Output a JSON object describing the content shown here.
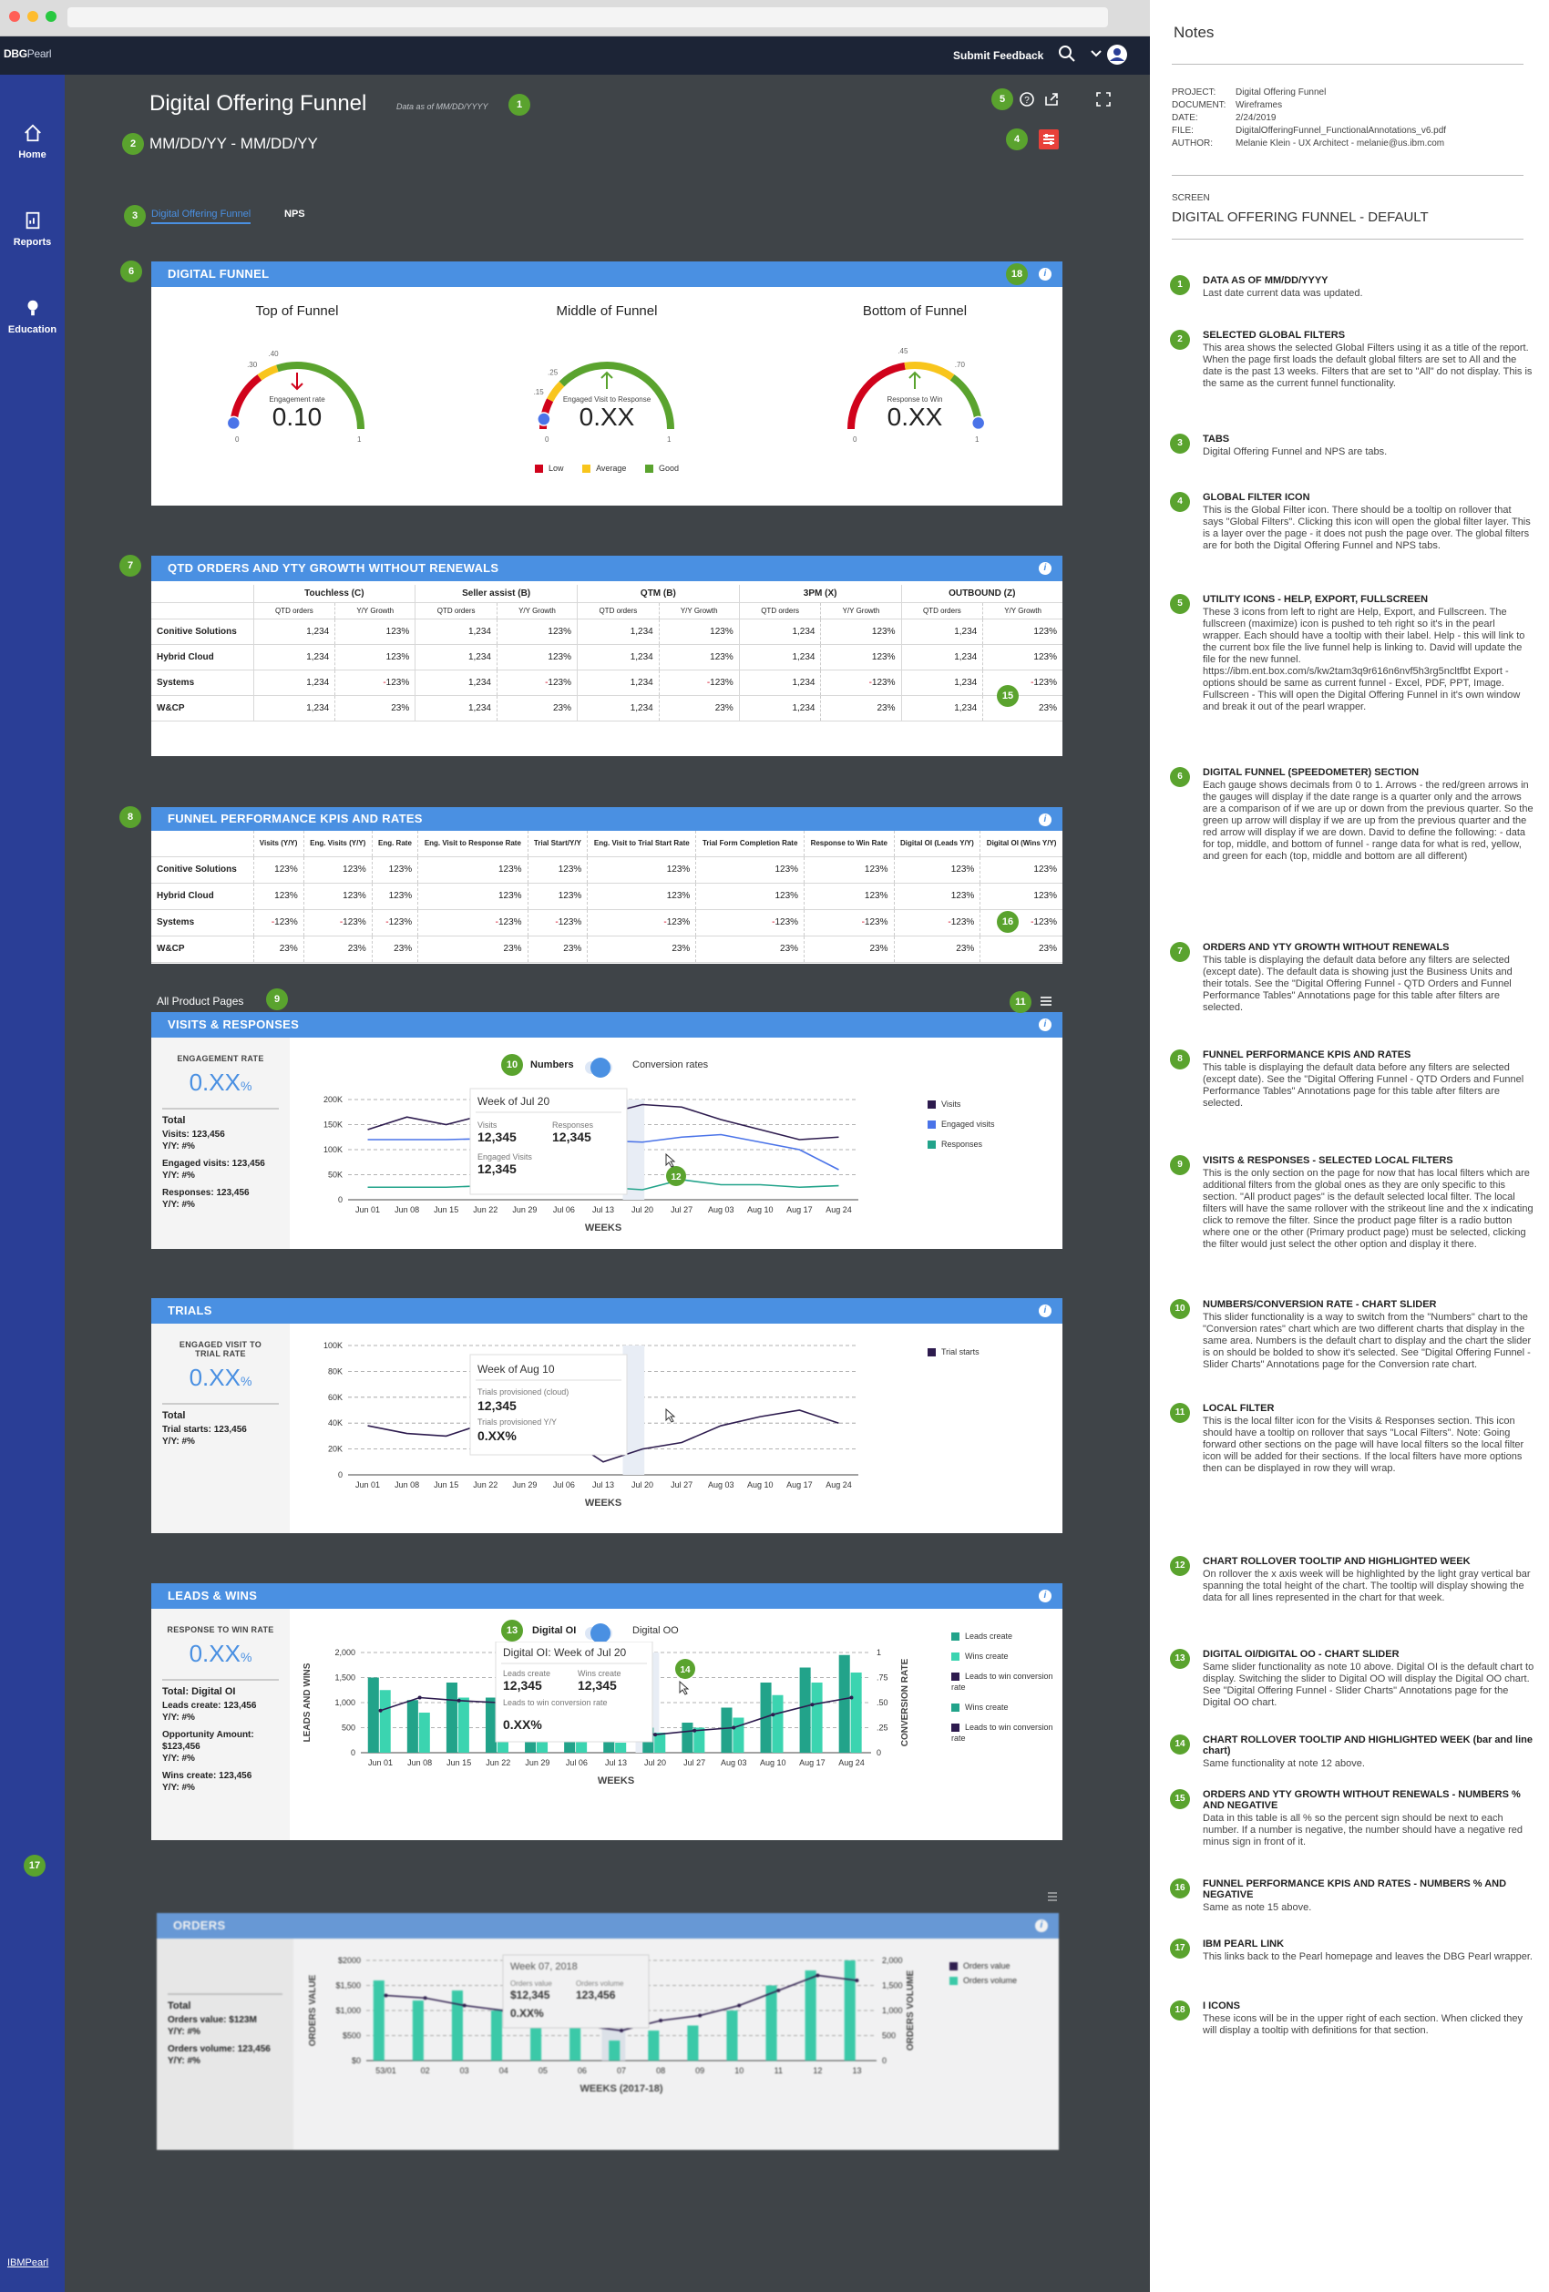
{
  "app": {
    "logo_bold": "DBG",
    "logo_rest": "Pearl",
    "feedback": "Submit Feedback",
    "bottom_link": "IBMPearl"
  },
  "nav": [
    {
      "label": "Home"
    },
    {
      "label": "Reports"
    },
    {
      "label": "Education"
    }
  ],
  "page": {
    "title": "Digital Offering Funnel",
    "data_as_of": "Data as of MM/DD/YYYY",
    "date_range": "MM/DD/YY - MM/DD/YY",
    "tabs": [
      {
        "label": "Digital Offering Funnel"
      },
      {
        "label": "NPS"
      }
    ]
  },
  "funnel": {
    "title": "DIGITAL FUNNEL",
    "gauges": [
      {
        "title": "Top of Funnel",
        "metric": "Engagement rate",
        "value": "0.10",
        "ticks": [
          ".30",
          ".40"
        ],
        "zero": "0",
        "one": "1",
        "arrow": "down"
      },
      {
        "title": "Middle of Funnel",
        "metric": "Engaged Visit to Response",
        "value": "0.XX",
        "ticks": [
          ".15",
          ".25"
        ],
        "zero": "0",
        "one": "1",
        "arrow": "up"
      },
      {
        "title": "Bottom of Funnel",
        "metric": "Response to Win",
        "value": "0.XX",
        "ticks": [
          ".45",
          ".70"
        ],
        "zero": "0",
        "one": "1",
        "arrow": "up"
      }
    ],
    "legend": [
      {
        "label": "Low",
        "color": "#d0021b"
      },
      {
        "label": "Average",
        "color": "#f8c51c"
      },
      {
        "label": "Good",
        "color": "#5aa32e"
      }
    ]
  },
  "qtd": {
    "title": "QTD ORDERS AND YTY GROWTH WITHOUT RENEWALS",
    "groups": [
      "Touchless (C)",
      "Seller assist (B)",
      "QTM (B)",
      "3PM (X)",
      "OUTBOUND (Z)"
    ],
    "sub": [
      "QTD orders",
      "Y/Y Growth"
    ],
    "rows": [
      {
        "name": "Conitive Solutions",
        "cells": [
          "1,234",
          "123%",
          "1,234",
          "123%",
          "1,234",
          "123%",
          "1,234",
          "123%",
          "1,234",
          "123%"
        ]
      },
      {
        "name": "Hybrid Cloud",
        "cells": [
          "1,234",
          "123%",
          "1,234",
          "123%",
          "1,234",
          "123%",
          "1,234",
          "123%",
          "1,234",
          "123%"
        ]
      },
      {
        "name": "Systems",
        "cells": [
          "1,234",
          "-123%",
          "1,234",
          "-123%",
          "1,234",
          "-123%",
          "1,234",
          "-123%",
          "1,234",
          "-123%"
        ]
      },
      {
        "name": "W&CP",
        "cells": [
          "1,234",
          "23%",
          "1,234",
          "23%",
          "1,234",
          "23%",
          "1,234",
          "23%",
          "1,234",
          "23%"
        ]
      }
    ]
  },
  "kpi": {
    "title": "FUNNEL PERFORMANCE KPIS AND RATES",
    "cols": [
      "Visits (Y/Y)",
      "Eng. Visits (Y/Y)",
      "Eng. Rate",
      "Eng. Visit to Response Rate",
      "Trial Start/Y/Y",
      "Eng. Visit to Trial Start Rate",
      "Trial Form Completion Rate",
      "Response to Win Rate",
      "Digital OI (Leads Y/Y)",
      "Digital OI (Wins Y/Y)"
    ],
    "rows": [
      {
        "name": "Conitive Solutions",
        "v": "123%"
      },
      {
        "name": "Hybrid Cloud",
        "v": "123%"
      },
      {
        "name": "Systems",
        "v": "-123%"
      },
      {
        "name": "W&CP",
        "v": "23%"
      }
    ]
  },
  "filter_label": "All Product Pages",
  "weeks": [
    "Jun 01",
    "Jun 08",
    "Jun 15",
    "Jun 22",
    "Jun 29",
    "Jul 06",
    "Jul 13",
    "Jul 20",
    "Jul 27",
    "Aug 03",
    "Aug 10",
    "Aug 17",
    "Aug 24"
  ],
  "weeks_label": "WEEKS",
  "visits": {
    "title": "VISITS & RESPONSES",
    "metric_label": "ENGAGEMENT RATE",
    "metric_value": "0.XX",
    "pct": "%",
    "totals": [
      "Total",
      "Visits: 123,456",
      "Y/Y: #%",
      "Engaged visits: 123,456",
      "Y/Y: #%",
      "Responses: 123,456",
      "Y/Y: #%"
    ],
    "toggle": [
      "Numbers",
      "Conversion rates"
    ],
    "tooltip": {
      "title": "Week of Jul 20",
      "a_label": "Visits",
      "a": "12,345",
      "b_label": "Responses",
      "b": "12,345",
      "c_label": "Engaged Visits",
      "c": "12,345"
    },
    "legend": [
      {
        "label": "Visits",
        "color": "#2d1b4e"
      },
      {
        "label": "Engaged visits",
        "color": "#4a73e8"
      },
      {
        "label": "Responses",
        "color": "#22a38a"
      }
    ],
    "yticks": [
      "0",
      "50K",
      "100K",
      "150K",
      "200K"
    ]
  },
  "trials": {
    "title": "TRIALS",
    "metric_label": "ENGAGED VISIT TO TRIAL RATE",
    "metric_value": "0.XX",
    "pct": "%",
    "totals": [
      "Total",
      "Trial starts: 123,456",
      "Y/Y: #%"
    ],
    "tooltip": {
      "title": "Week of Aug 10",
      "a_label": "Trials provisioned (cloud)",
      "a": "12,345",
      "b_label": "Trials provisioned Y/Y",
      "b": "0.XX%"
    },
    "legend": [
      {
        "label": "Trial starts",
        "color": "#2d1b4e"
      }
    ],
    "yticks": [
      "0",
      "20K",
      "40K",
      "60K",
      "80K",
      "100K"
    ]
  },
  "leads": {
    "title": "LEADS & WINS",
    "metric_label": "RESPONSE TO WIN RATE",
    "metric_value": "0.XX",
    "pct": "%",
    "totals": [
      "Total: Digital OI",
      "Leads create: 123,456",
      "Y/Y: #%",
      "Opportunity Amount: $123,456",
      "Y/Y: #%",
      "Wins create: 123,456",
      "Y/Y: #%"
    ],
    "toggle": [
      "Digital OI",
      "Digital OO"
    ],
    "tooltip": {
      "title": "Digital OI: Week of Jul 20",
      "a_label": "Leads create",
      "a": "12,345",
      "b_label": "Wins create",
      "b": "12,345",
      "c_label": "Leads to win conversion rate",
      "c": "0.XX%"
    },
    "legend": [
      {
        "label": "Leads create",
        "color": "#22a38a"
      },
      {
        "label": "Wins create",
        "color": "#3bd4b0"
      },
      {
        "label": "Leads to win conversion rate",
        "color": "#2d1b4e"
      },
      {
        "label": "Wins create",
        "color": "#22a38a"
      },
      {
        "label": "Leads to win conversion rate",
        "color": "#2d1b4e"
      }
    ],
    "yticks": [
      "0",
      "500",
      "1,000",
      "1,500",
      "2,000"
    ],
    "rticks": [
      "0",
      ".25",
      ".50",
      ".75",
      "1"
    ],
    "ylabel": "LEADS AND WINS",
    "rlabel": "CONVERSION RATE"
  },
  "orders": {
    "title": "ORDERS",
    "totals": [
      "Total",
      "Orders value: $123M",
      "Y/Y: #%",
      "Orders volume: 123,456",
      "Y/Y: #%"
    ],
    "tooltip": {
      "title": "Week 07, 2018",
      "a_label": "Orders value",
      "a": "$12,345",
      "b_label": "Orders volume",
      "b": "123,456",
      "c": "0.XX%"
    },
    "legend": [
      {
        "label": "Orders value",
        "color": "#2d1b4e"
      },
      {
        "label": "Orders volume",
        "color": "#3bd4b0"
      }
    ],
    "weeks": [
      "53/01",
      "02",
      "03",
      "04",
      "05",
      "06",
      "07",
      "08",
      "09",
      "10",
      "11",
      "12",
      "13"
    ],
    "weeks_label": "WEEKS (2017-18)",
    "yticks": [
      "$0",
      "$500",
      "$1,000",
      "$1,500",
      "$2000"
    ],
    "rticks": [
      "0",
      "500",
      "1,000",
      "1,500",
      "2,000"
    ],
    "ylabel": "ORDERS VALUE",
    "rlabel": "ORDERS VOLUME"
  },
  "notes": {
    "title": "Notes",
    "meta": [
      [
        "PROJECT:",
        "Digital Offering Funnel"
      ],
      [
        "DOCUMENT:",
        "Wireframes"
      ],
      [
        "DATE:",
        "2/24/2019"
      ],
      [
        "FILE:",
        "DigitalOfferingFunnel_FunctionalAnnotations_v6.pdf"
      ],
      [
        "AUTHOR:",
        "Melanie Klein - UX Architect - melanie@us.ibm.com"
      ]
    ],
    "screen_label": "SCREEN",
    "screen": "DIGITAL OFFERING FUNNEL - DEFAULT",
    "items": [
      {
        "n": "1",
        "t": "DATA AS OF MM/DD/YYYY",
        "b": "Last date current data was updated."
      },
      {
        "n": "2",
        "t": "SELECTED GLOBAL FILTERS",
        "b": "This area shows the selected Global Filters using it as a title of the report. When the page first loads the default global filters are set to All and the date is the past 13 weeks. Filters that are set to \"All\" do not display. This is the same as the current funnel functionality."
      },
      {
        "n": "3",
        "t": "TABS",
        "b": "Digital Offering Funnel and NPS are tabs."
      },
      {
        "n": "4",
        "t": "GLOBAL FILTER ICON",
        "b": "This is the Global Filter icon. There should be a tooltip on rollover that says \"Global Filters\". Clicking this icon will open the global filter layer. This is a layer over the page - it does not push the page over. The global filters are for both the Digital Offering Funnel and NPS tabs."
      },
      {
        "n": "5",
        "t": "UTILITY ICONS - HELP, EXPORT, FULLSCREEN",
        "b": "These 3 icons from left to right are Help, Export, and Fullscreen. The fullscreen (maximize) icon is pushed to teh right so it's in the pearl wrapper. Each should have a tooltip with their label. Help - this will link to the current box file the live funnel help is linking to. David will update the file for the new funnel. https://ibm.ent.box.com/s/kw2tam3q9r616n6nvf5h3rg5ncltfbt Export - options should be same as current funnel - Excel, PDF, PPT, Image. Fullscreen - This will open the Digital Offering Funnel in it's own window and break it out of the pearl wrapper."
      },
      {
        "n": "6",
        "t": "DIGITAL FUNNEL (SPEEDOMETER) SECTION",
        "b": "Each gauge shows decimals from 0 to 1. Arrows - the red/green arrows in the gauges will display if the date range is a quarter only and the arrows are a comparison of if we are up or down from the previous quarter. So the green up arrow will display if we are up from the previous quarter and the red arrow will display if we are down. David to define the following: - data for top, middle, and bottom of funnel - range data for what is red, yellow, and green for each (top, middle and bottom are all different)"
      },
      {
        "n": "7",
        "t": "ORDERS AND YTY GROWTH WITHOUT RENEWALS",
        "b": "This table is displaying the default data before any filters are selected (except date). The default data is showing just the Business Units and their totals. See the \"Digital Offering Funnel - QTD Orders and Funnel Performance Tables\" Annotations page for this table after filters are selected."
      },
      {
        "n": "8",
        "t": "FUNNEL PERFORMANCE KPIS AND RATES",
        "b": "This table is displaying the default data before any filters are selected (except date). See the \"Digital Offering Funnel - QTD Orders and Funnel Performance Tables\" Annotations page for this table after filters are selected."
      },
      {
        "n": "9",
        "t": "VISITS & RESPONSES - SELECTED LOCAL FILTERS",
        "b": "This is the only section on the page for now that has local filters which are additional filters from the global ones as they are only specific to this section. \"All product pages\" is the default selected local filter. The local filters will have the same rollover with the strikeout line and the x indicating click to remove the filter. Since the product page filter is a radio button where one or the other (Primary product page) must be selected, clicking the filter would just select the other option and display it there."
      },
      {
        "n": "10",
        "t": "NUMBERS/CONVERSION RATE - CHART SLIDER",
        "b": "This slider functionality is a way to switch from the \"Numbers\" chart to the \"Conversion rates\" chart which are two different charts that display in the same area. Numbers is the default chart to display and the chart the slider is on should be bolded to show it's selected. See \"Digital Offering Funnel - Slider Charts\" Annotations page for the Conversion rate chart."
      },
      {
        "n": "11",
        "t": "LOCAL FILTER",
        "b": "This is the local filter icon for the Visits & Responses section. This icon should have a tooltip on rollover that says \"Local Filters\". Note: Going forward other sections on the page will have local filters so the local filter icon will be added for their sections. If the local filters have more options then can be displayed in row they will wrap."
      },
      {
        "n": "12",
        "t": "CHART ROLLOVER TOOLTIP AND HIGHLIGHTED WEEK",
        "b": "On rollover the x axis week will be highlighted by the light gray vertical bar spanning the total height of the chart. The tooltip will display showing the data for all lines represented in the chart for that week."
      },
      {
        "n": "13",
        "t": "DIGITAL OI/DIGITAL OO - CHART SLIDER",
        "b": "Same slider functionality as note 10 above. Digital OI is the default chart to display. Switching the slider to Digital OO will display the Digital OO chart. See \"Digital Offering Funnel - Slider Charts\" Annotations page for the Digital OO chart."
      },
      {
        "n": "14",
        "t": "CHART ROLLOVER TOOLTIP AND HIGHLIGHTED WEEK (bar and line chart)",
        "b": "Same functionality at note 12 above."
      },
      {
        "n": "15",
        "t": "ORDERS AND YTY GROWTH WITHOUT RENEWALS - NUMBERS % AND NEGATIVE",
        "b": "Data in this table is all % so the percent sign should be next to each number. If a number is negative, the number should have a negative red minus sign in front of it."
      },
      {
        "n": "16",
        "t": "FUNNEL PERFORMANCE KPIS AND RATES - NUMBERS % AND NEGATIVE",
        "b": "Same as note 15 above."
      },
      {
        "n": "17",
        "t": "IBM PEARL LINK",
        "b": "This links back to the Pearl homepage and leaves the DBG Pearl wrapper."
      },
      {
        "n": "18",
        "t": "I ICONS",
        "b": "These icons will be in the upper right of each section. When clicked they will display a tooltip with definitions for that section."
      }
    ]
  },
  "markers": {
    "m1": "1",
    "m2": "2",
    "m3": "3",
    "m4": "4",
    "m5": "5",
    "m6": "6",
    "m7": "7",
    "m8": "8",
    "m9": "9",
    "m10": "10",
    "m11": "11",
    "m12": "12",
    "m13": "13",
    "m14": "14",
    "m15": "15",
    "m16": "16",
    "m17": "17",
    "m18": "18"
  },
  "chart_data": [
    {
      "type": "line",
      "title": "VISITS & RESPONSES",
      "x": [
        "Jun 01",
        "Jun 08",
        "Jun 15",
        "Jun 22",
        "Jun 29",
        "Jul 06",
        "Jul 13",
        "Jul 20",
        "Jul 27",
        "Aug 03",
        "Aug 10",
        "Aug 17",
        "Aug 24"
      ],
      "ylim": [
        0,
        200000
      ],
      "series": [
        {
          "name": "Visits",
          "values": [
            140000,
            165000,
            150000,
            170000,
            155000,
            160000,
            170000,
            190000,
            185000,
            160000,
            140000,
            120000,
            125000
          ]
        },
        {
          "name": "Engaged visits",
          "values": [
            120000,
            120000,
            120000,
            122000,
            125000,
            120000,
            118000,
            115000,
            125000,
            130000,
            115000,
            100000,
            60000
          ]
        },
        {
          "name": "Responses",
          "values": [
            25000,
            25000,
            25000,
            28000,
            28000,
            30000,
            25000,
            20000,
            40000,
            30000,
            30000,
            25000,
            28000
          ]
        }
      ]
    },
    {
      "type": "line",
      "title": "TRIALS",
      "x": [
        "Jun 01",
        "Jun 08",
        "Jun 15",
        "Jun 22",
        "Jun 29",
        "Jul 06",
        "Jul 13",
        "Jul 20",
        "Jul 27",
        "Aug 03",
        "Aug 10",
        "Aug 17",
        "Aug 24"
      ],
      "ylim": [
        0,
        100000
      ],
      "series": [
        {
          "name": "Trial starts",
          "values": [
            38000,
            32000,
            30000,
            40000,
            38000,
            30000,
            10000,
            20000,
            25000,
            38000,
            45000,
            50000,
            40000
          ]
        }
      ]
    },
    {
      "type": "bar",
      "title": "LEADS & WINS",
      "x": [
        "Jun 01",
        "Jun 08",
        "Jun 15",
        "Jun 22",
        "Jun 29",
        "Jul 06",
        "Jul 13",
        "Jul 20",
        "Jul 27",
        "Aug 03",
        "Aug 10",
        "Aug 17",
        "Aug 24"
      ],
      "ylim": [
        0,
        2000
      ],
      "series": [
        {
          "name": "Leads create",
          "values": [
            1500,
            1050,
            1400,
            1100,
            900,
            1200,
            300,
            500,
            600,
            900,
            1400,
            1700,
            1950
          ]
        },
        {
          "name": "Wins create",
          "values": [
            1250,
            800,
            1100,
            700,
            600,
            900,
            200,
            400,
            500,
            700,
            1150,
            1400,
            1600
          ]
        },
        {
          "name": "Leads to win conversion rate",
          "values": [
            0.42,
            0.55,
            0.52,
            0.5,
            0.5,
            0.48,
            0.3,
            0.18,
            0.22,
            0.25,
            0.38,
            0.48,
            0.55
          ]
        }
      ]
    },
    {
      "type": "bar",
      "title": "ORDERS",
      "x": [
        "53/01",
        "02",
        "03",
        "04",
        "05",
        "06",
        "07",
        "08",
        "09",
        "10",
        "11",
        "12",
        "13"
      ],
      "ylim": [
        0,
        2000
      ],
      "series": [
        {
          "name": "Orders volume",
          "values": [
            1600,
            1200,
            1400,
            1000,
            900,
            1100,
            400,
            600,
            700,
            1000,
            1500,
            1800,
            2000
          ]
        },
        {
          "name": "Orders value",
          "values": [
            1300,
            1250,
            1100,
            1000,
            800,
            700,
            600,
            800,
            900,
            1100,
            1400,
            1700,
            1600
          ]
        }
      ]
    }
  ]
}
